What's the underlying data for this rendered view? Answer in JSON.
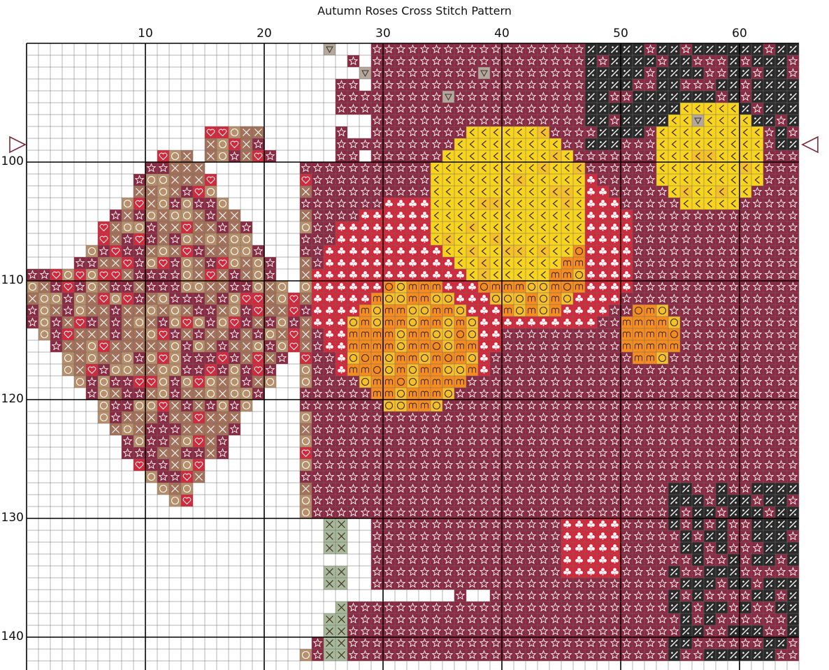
{
  "title": "Autumn Roses Cross Stitch Pattern",
  "grid": {
    "first_col": 1,
    "last_col": 65,
    "first_row": 91,
    "last_row": 143,
    "col_labels": [
      "10",
      "20",
      "30",
      "40",
      "50",
      "60"
    ],
    "row_labels": [
      "100",
      "110",
      "120",
      "130",
      "140"
    ],
    "center_row": 100
  },
  "palette": {
    "maroon": "#8a2a43",
    "crimson": "#d12a3c",
    "red": "#e0394a",
    "rose": "#f07e7a",
    "pink": "#f4a58f",
    "orange": "#f58c1f",
    "dark_orange": "#e26a1a",
    "gold": "#f5c02a",
    "yellow": "#f8d41e",
    "light_yellow": "#fbe07a",
    "brown": "#a4715a",
    "tan": "#b78f6a",
    "olive": "#9a8a3c",
    "dark": "#2a2a2a",
    "green": "#3e6e2a",
    "sage": "#a8b89a",
    "grey": "#b5a89a"
  },
  "symbols": [
    "star",
    "club",
    "heart",
    "hash",
    "asterisk",
    "circle",
    "square",
    "m-glyph",
    "chevron",
    "corner",
    "flag",
    "cross",
    "triangle",
    "diagonal",
    "dot",
    "bar",
    "diamond",
    "seven",
    "slash-dots",
    "triangle-marker"
  ]
}
